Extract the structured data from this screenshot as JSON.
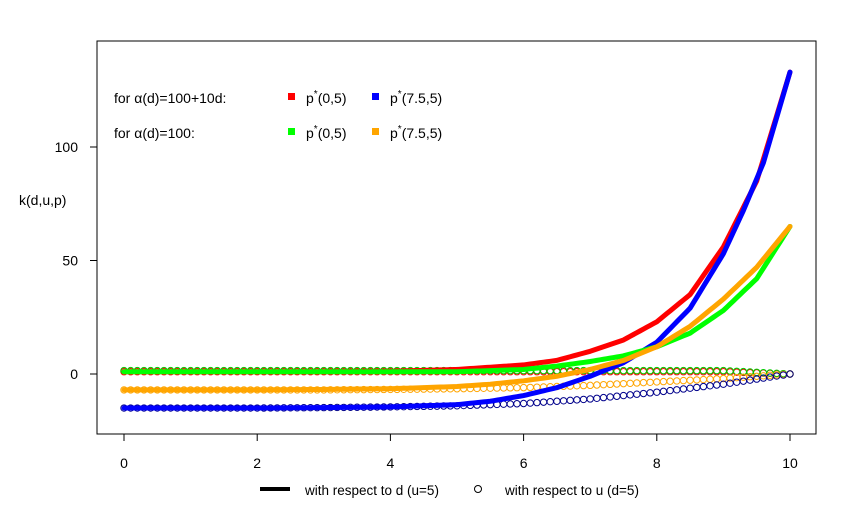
{
  "chart_data": {
    "type": "line",
    "title": "",
    "xlabel": "",
    "ylabel": "k(d,u,p)",
    "xlim": [
      0,
      10
    ],
    "ylim": [
      -27,
      147
    ],
    "x_ticks": [
      0,
      2,
      4,
      6,
      8,
      10
    ],
    "y_ticks": [
      0,
      50,
      100
    ],
    "x_tick_labels": [
      "0",
      "2",
      "4",
      "6",
      "8",
      "10"
    ],
    "y_tick_labels": [
      "0",
      "50",
      "100"
    ],
    "legend_top": {
      "row1_label": "for α(d)=100+10d:",
      "row2_label": "for α(d)=100:",
      "entries": [
        {
          "series": "red",
          "text": "p*(0,5)",
          "base": "p",
          "sup": "*",
          "args": "(0,5)",
          "color": "#ff0000"
        },
        {
          "series": "blue",
          "text": "p*(7.5,5)",
          "base": "p",
          "sup": "*",
          "args": "(7.5,5)",
          "color": "#0000ff"
        },
        {
          "series": "green",
          "text": "p*(0,5)",
          "base": "p",
          "sup": "*",
          "args": "(0,5)",
          "color": "#00ff00"
        },
        {
          "series": "orange",
          "text": "p*(7.5,5)",
          "base": "p",
          "sup": "*",
          "args": "(7.5,5)",
          "color": "#ffa500"
        }
      ]
    },
    "legend_bottom": {
      "line_label": "with respect to d (u=5)",
      "circle_label": "with respect to u (d=5)"
    },
    "series_lines": [
      {
        "name": "red",
        "color": "#ff0000",
        "x": [
          0,
          1,
          2,
          3,
          4,
          5,
          6,
          6.5,
          7,
          7.5,
          8,
          8.5,
          9,
          9.5,
          10
        ],
        "y": [
          1,
          1,
          1,
          1,
          1.2,
          2,
          4,
          6,
          10,
          15,
          23,
          35,
          56,
          85,
          133
        ]
      },
      {
        "name": "blue",
        "color": "#0000ff",
        "x": [
          0,
          1,
          2,
          3,
          4,
          5,
          5.5,
          6,
          6.5,
          7,
          7.5,
          8,
          8.5,
          9,
          9.3,
          9.6,
          10
        ],
        "y": [
          -15,
          -15,
          -15,
          -14.8,
          -14.5,
          -13.5,
          -12,
          -9.5,
          -6,
          -1,
          5,
          14,
          29,
          53,
          72,
          93,
          133
        ]
      },
      {
        "name": "green",
        "color": "#00ff00",
        "x": [
          0,
          1,
          2,
          3,
          4,
          5,
          5.5,
          6,
          6.5,
          7,
          7.5,
          8,
          8.5,
          9,
          9.5,
          10
        ],
        "y": [
          1,
          1,
          1,
          1,
          1,
          1,
          1.5,
          2,
          3.5,
          5.5,
          8,
          12,
          18,
          28,
          42,
          65
        ]
      },
      {
        "name": "orange",
        "color": "#ffa500",
        "x": [
          0,
          1,
          2,
          3,
          4,
          5,
          5.5,
          6,
          6.5,
          7,
          7.5,
          8,
          8.5,
          9,
          9.5,
          10
        ],
        "y": [
          -7,
          -7,
          -7,
          -6.8,
          -6.5,
          -5.5,
          -4.5,
          -3,
          -1,
          2,
          6,
          12,
          21,
          33,
          47,
          65
        ]
      }
    ],
    "series_circles": [
      {
        "name": "red",
        "color": "#ff0000",
        "x": [
          0,
          1,
          2,
          3,
          4,
          5,
          6,
          7,
          8,
          9,
          10
        ],
        "y": [
          1,
          1,
          1,
          1,
          1,
          1,
          1,
          1,
          1,
          1,
          0
        ]
      },
      {
        "name": "green",
        "color": "#00cc00",
        "x": [
          0,
          1,
          2,
          3,
          4,
          5,
          6,
          7,
          8,
          9,
          10
        ],
        "y": [
          1.5,
          1.5,
          1.5,
          1.5,
          1.5,
          1.5,
          1.5,
          1.5,
          1.5,
          1.5,
          0
        ]
      },
      {
        "name": "orange",
        "color": "#ffa500",
        "x": [
          0,
          1,
          2,
          3,
          4,
          5,
          6,
          7,
          8,
          9,
          10
        ],
        "y": [
          -7,
          -7,
          -7,
          -7,
          -6.8,
          -6.5,
          -6,
          -5,
          -3.5,
          -2,
          0
        ]
      },
      {
        "name": "blue",
        "color": "#00008b",
        "x": [
          0,
          1,
          2,
          3,
          4,
          5,
          6,
          7,
          8,
          9,
          10
        ],
        "y": [
          -15,
          -15,
          -15,
          -14.8,
          -14.5,
          -14,
          -13,
          -11,
          -8,
          -4.5,
          0
        ]
      }
    ]
  }
}
